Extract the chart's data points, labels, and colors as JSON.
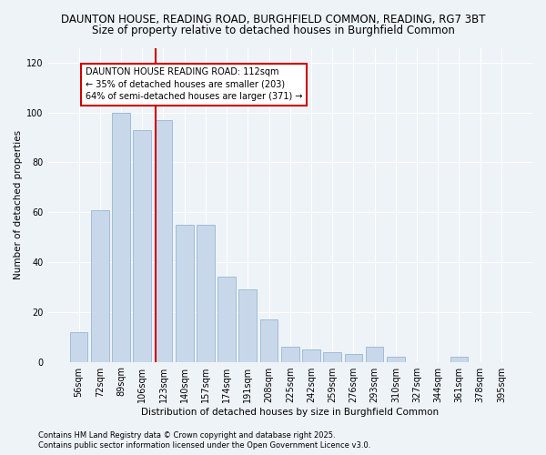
{
  "title1": "DAUNTON HOUSE, READING ROAD, BURGHFIELD COMMON, READING, RG7 3BT",
  "title2": "Size of property relative to detached houses in Burghfield Common",
  "xlabel": "Distribution of detached houses by size in Burghfield Common",
  "ylabel": "Number of detached properties",
  "categories": [
    "56sqm",
    "72sqm",
    "89sqm",
    "106sqm",
    "123sqm",
    "140sqm",
    "157sqm",
    "174sqm",
    "191sqm",
    "208sqm",
    "225sqm",
    "242sqm",
    "259sqm",
    "276sqm",
    "293sqm",
    "310sqm",
    "327sqm",
    "344sqm",
    "361sqm",
    "378sqm",
    "395sqm"
  ],
  "values": [
    12,
    61,
    100,
    93,
    97,
    55,
    55,
    34,
    29,
    17,
    6,
    5,
    4,
    3,
    6,
    2,
    0,
    0,
    2,
    0,
    0
  ],
  "bar_color": "#c8d8ea",
  "bar_edge_color": "#a0bcd8",
  "vline_color": "#cc0000",
  "vline_pos": 3.65,
  "annotation_text": "DAUNTON HOUSE READING ROAD: 112sqm\n← 35% of detached houses are smaller (203)\n64% of semi-detached houses are larger (371) →",
  "annotation_box_color": "white",
  "annotation_box_edge_color": "#cc0000",
  "ylim": [
    0,
    126
  ],
  "yticks": [
    0,
    20,
    40,
    60,
    80,
    100,
    120
  ],
  "footer1": "Contains HM Land Registry data © Crown copyright and database right 2025.",
  "footer2": "Contains public sector information licensed under the Open Government Licence v3.0.",
  "bg_color": "#eef3f8",
  "plot_bg_color": "#eef3f8",
  "grid_color": "white",
  "title1_fontsize": 8.5,
  "title2_fontsize": 8.5,
  "axis_fontsize": 7.5,
  "tick_fontsize": 7,
  "annotation_fontsize": 7,
  "footer_fontsize": 6
}
